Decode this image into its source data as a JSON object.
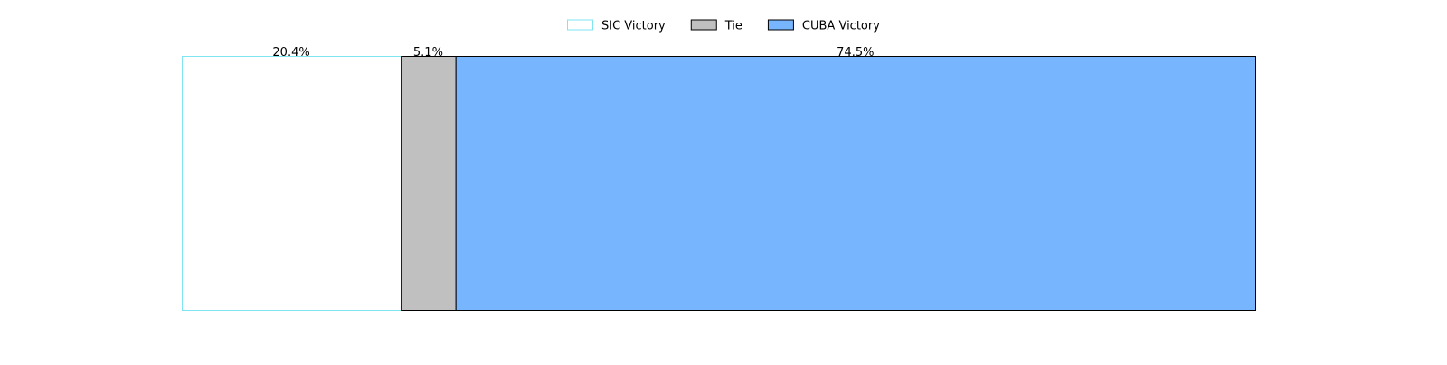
{
  "chart_data": {
    "type": "bar",
    "orientation": "horizontal",
    "stacked": true,
    "normalized": true,
    "title": "",
    "xlabel": "",
    "ylabel": "",
    "xlim": [
      0,
      100
    ],
    "grid": false,
    "axes_visible": false,
    "legend_position": "top-center",
    "series": [
      {
        "name": "SIC Victory",
        "value": 20.4,
        "label": "20.4%",
        "fill": "#ffffff",
        "stroke": "#7fe5f0"
      },
      {
        "name": "Tie",
        "value": 5.1,
        "label": "5.1%",
        "fill": "#c0c0c0",
        "stroke": "#000000"
      },
      {
        "name": "CUBA Victory",
        "value": 74.5,
        "label": "74.5%",
        "fill": "#77b5fe",
        "stroke": "#000000"
      }
    ]
  }
}
